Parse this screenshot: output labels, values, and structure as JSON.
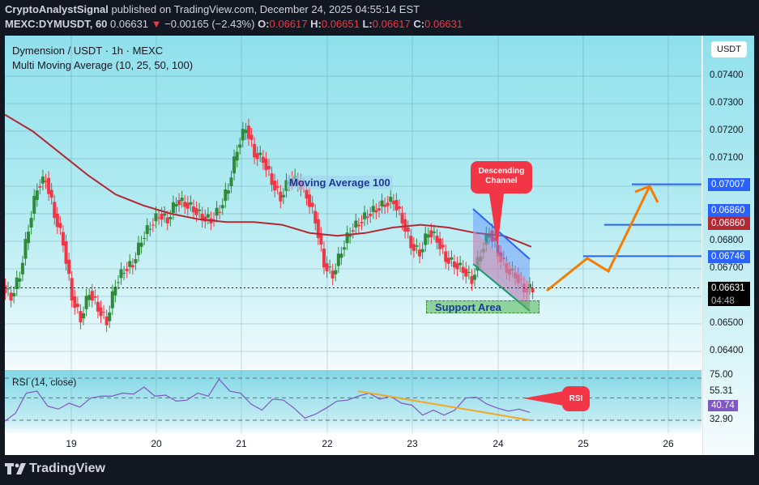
{
  "header": {
    "author": "CryptoAnalystSignal",
    "published": " published on TradingView.com, December 24, 2025 04:55:14 EST",
    "symbol": "MEXC:DYMUSDT, 60",
    "price": " 0.06631",
    "change_arrow": "▼",
    "change": " −0.00165 (−2.43%) ",
    "o_label": "O:",
    "o": "0.06617",
    "h_label": " H:",
    "h": "0.06651",
    "l_label": " L:",
    "l": "0.06617",
    "c_label": " C:",
    "c": "0.06631"
  },
  "legend": {
    "title": "Dymension / USDT · 1h · MEXC",
    "indicator": "Multi Moving Average (10, 25, 50, 100)"
  },
  "axis": {
    "currency": "USDT",
    "price_ticks": [
      "0.07400",
      "0.07300",
      "0.07200",
      "0.07100",
      "0.06800",
      "0.06700",
      "0.06500",
      "0.06400"
    ],
    "badges": [
      {
        "value": "0.07007",
        "color": "#2962ff"
      },
      {
        "value": "0.06860",
        "color": "#2962ff"
      },
      {
        "value": "0.06860",
        "color": "#b22833"
      },
      {
        "value": "0.06746",
        "color": "#2962ff"
      }
    ],
    "last_price": "0.06631",
    "countdown": "04:48",
    "x_ticks": [
      "19",
      "20",
      "21",
      "22",
      "23",
      "24",
      "25",
      "26"
    ]
  },
  "rsi": {
    "label": "RSI (14, close)",
    "levels": [
      "75.00",
      "55.31",
      "32.90"
    ],
    "value": "40.74",
    "value_color": "#7e57c2"
  },
  "annotations": {
    "ma100": "Moving Average 100",
    "support": "Support Area",
    "channel": "Descending Channel",
    "rsi": "RSI"
  },
  "footer": {
    "brand": "TradingView"
  },
  "chart_data": {
    "type": "candlestick",
    "title": "Dymension / USDT · 1h · MEXC",
    "xlabel": "",
    "ylabel": "USDT",
    "ylim": [
      0.0635,
      0.075
    ],
    "grid": true,
    "x_ticks": [
      "19",
      "20",
      "21",
      "22",
      "23",
      "24",
      "25",
      "26"
    ],
    "series": [
      {
        "name": "Price (approx closes, 1h)",
        "values": [
          0.066,
          0.0668,
          0.0685,
          0.07,
          0.0703,
          0.069,
          0.068,
          0.066,
          0.0652,
          0.0662,
          0.0656,
          0.0651,
          0.0665,
          0.067,
          0.0672,
          0.0681,
          0.0686,
          0.069,
          0.0688,
          0.0695,
          0.0694,
          0.0692,
          0.0689,
          0.0688,
          0.0692,
          0.07,
          0.0714,
          0.0722,
          0.0712,
          0.071,
          0.0702,
          0.0696,
          0.0703,
          0.0702,
          0.0697,
          0.0688,
          0.0672,
          0.0668,
          0.0677,
          0.0684,
          0.0687,
          0.069,
          0.0692,
          0.0694,
          0.0695,
          0.0688,
          0.0679,
          0.0676,
          0.0684,
          0.0681,
          0.0674,
          0.0672,
          0.067,
          0.0666,
          0.0676,
          0.0684,
          0.0676,
          0.067,
          0.0668,
          0.0663,
          0.0663
        ]
      },
      {
        "name": "Moving Average 100",
        "values": [
          0.0726,
          0.072,
          0.0712,
          0.0704,
          0.0697,
          0.0693,
          0.069,
          0.0688,
          0.0687,
          0.0687,
          0.0686,
          0.0683,
          0.0682,
          0.0683,
          0.0685,
          0.0686,
          0.0685,
          0.0683,
          0.0682,
          0.0678
        ]
      },
      {
        "name": "RSI (14)",
        "values": [
          32,
          40,
          60,
          62,
          47,
          44,
          50,
          46,
          55,
          57,
          57,
          60,
          59,
          66,
          57,
          58,
          52,
          53,
          60,
          57,
          74,
          62,
          60,
          49,
          43,
          54,
          53,
          45,
          35,
          39,
          45,
          52,
          53,
          57,
          60,
          54,
          57,
          50,
          48,
          38,
          43,
          38,
          43,
          55,
          56,
          49,
          45,
          42,
          44,
          40.74
        ]
      }
    ],
    "levels": {
      "targets": [
        0.06746,
        0.0686,
        0.07007
      ],
      "ma100_current": 0.0686,
      "last": 0.06631,
      "rsi_bands": [
        75.0,
        55.31,
        32.9
      ]
    }
  }
}
